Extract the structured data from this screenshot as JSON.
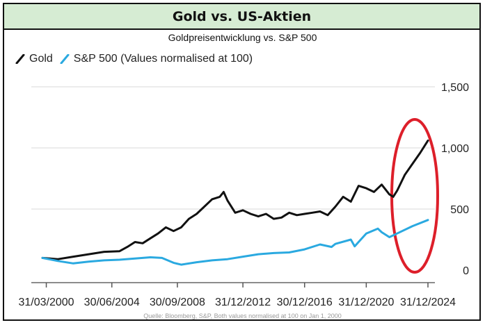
{
  "header": {
    "title": "Gold vs. US-Aktien"
  },
  "chart_data": {
    "type": "line",
    "title": "Goldpreisentwicklung vs. S&P 500",
    "legend": {
      "gold": "Gold",
      "sp500": "S&P 500 (Values normalised at 100)",
      "placement": "top-left"
    },
    "source": "Quelle: Bloomberg, S&P, Both values normalised at 100 on Jan 1, 2000",
    "x_tick_labels": [
      "31/03/2000",
      "30/06/2004",
      "30/09/2008",
      "31/12/2012",
      "30/12/2016",
      "31/12/2020",
      "31/12/2024"
    ],
    "x_tick_years": [
      2000.25,
      2004.5,
      2008.75,
      2013.0,
      2017.0,
      2021.0,
      2025.0
    ],
    "y_tick_labels": [
      "0",
      "500",
      "1,000",
      "1,500"
    ],
    "y_tick_values": [
      0,
      500,
      1000,
      1500
    ],
    "xlim": [
      2000.0,
      2025.0
    ],
    "ylim": [
      0,
      1500
    ],
    "grid": "horizontal",
    "series": [
      {
        "name": "Gold",
        "color": "#111111",
        "x": [
          2000.0,
          2001.0,
          2002.0,
          2003.0,
          2004.0,
          2005.0,
          2005.5,
          2006.0,
          2006.5,
          2007.0,
          2007.5,
          2008.0,
          2008.5,
          2009.0,
          2009.5,
          2010.0,
          2010.5,
          2011.0,
          2011.5,
          2011.75,
          2012.0,
          2012.5,
          2013.0,
          2013.5,
          2014.0,
          2014.5,
          2015.0,
          2015.5,
          2016.0,
          2016.5,
          2017.0,
          2017.5,
          2018.0,
          2018.5,
          2019.0,
          2019.5,
          2020.0,
          2020.5,
          2021.0,
          2021.5,
          2022.0,
          2022.5,
          2022.75,
          2023.0,
          2023.5,
          2024.0,
          2024.5,
          2025.0
        ],
        "values": [
          100,
          90,
          110,
          130,
          150,
          155,
          190,
          230,
          220,
          260,
          300,
          350,
          320,
          350,
          420,
          460,
          520,
          580,
          600,
          640,
          570,
          470,
          490,
          460,
          440,
          460,
          420,
          430,
          470,
          450,
          460,
          470,
          480,
          450,
          520,
          600,
          560,
          690,
          670,
          640,
          700,
          620,
          600,
          650,
          780,
          870,
          960,
          1060
        ]
      },
      {
        "name": "S&P 500 (Values normalised at 100)",
        "color": "#2aa9e0",
        "x": [
          2000.0,
          2001.0,
          2002.0,
          2003.0,
          2004.0,
          2005.0,
          2006.0,
          2007.0,
          2007.75,
          2008.5,
          2009.0,
          2010.0,
          2011.0,
          2012.0,
          2013.0,
          2014.0,
          2015.0,
          2016.0,
          2017.0,
          2018.0,
          2018.75,
          2019.0,
          2020.0,
          2020.25,
          2020.5,
          2021.0,
          2021.75,
          2022.0,
          2022.5,
          2023.0,
          2024.0,
          2025.0
        ],
        "values": [
          100,
          75,
          55,
          70,
          80,
          85,
          95,
          105,
          100,
          60,
          45,
          65,
          80,
          90,
          110,
          130,
          140,
          145,
          170,
          210,
          190,
          215,
          250,
          195,
          230,
          300,
          340,
          310,
          270,
          300,
          360,
          410
        ]
      }
    ]
  }
}
